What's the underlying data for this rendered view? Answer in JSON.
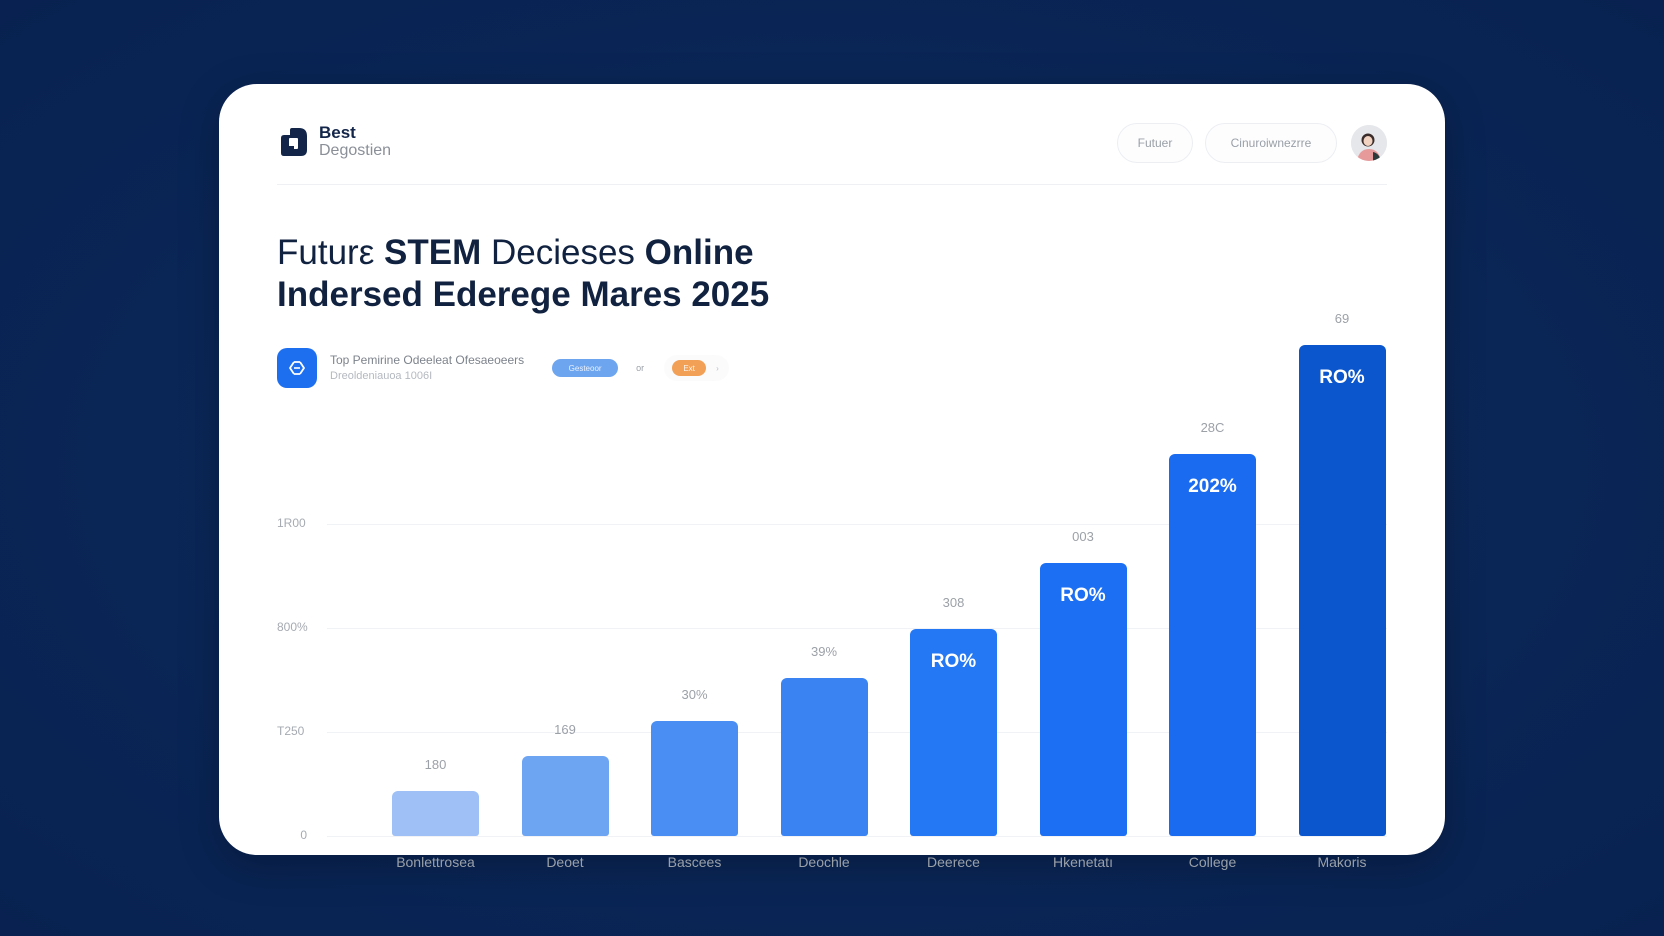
{
  "header": {
    "logo_line1": "Best",
    "logo_line2": "Degostien",
    "nav": [
      {
        "label": "Futuer"
      },
      {
        "label": "Cinuroiwnezrre"
      }
    ]
  },
  "title": {
    "part1": "Futurε ",
    "part2": "STEM ",
    "part3": "Decieses ",
    "part4": "Online",
    "line2": "Indersed Ederege Mares 2025"
  },
  "info": {
    "line1": "Top Pemirine Odeeleat Ofesaeoeers",
    "line2": "Dreoldeniauoa 1006I",
    "chip_blue": "Gesteoor",
    "chip_sep": "or",
    "chip_orange": "Ext",
    "chip_caret": "›"
  },
  "colors": {
    "background": "#0a2656",
    "card": "#ffffff",
    "primary_blue": "#1d6ff0",
    "dark_blue": "#0b56cc",
    "orange": "#f3a057"
  },
  "chart_data": {
    "type": "bar",
    "title": "Future STEM Decieses Online Indersed Ederege Mares 2025",
    "xlabel": "",
    "ylabel": "",
    "y_ticks": [
      "0",
      "T250",
      "800%",
      "1R00"
    ],
    "grid": true,
    "categories": [
      "Bonlettrosea",
      "Deoet",
      "Bascees",
      "Deochle",
      "Deerece",
      "Hkenetatı",
      "College",
      "Makoris"
    ],
    "values": [
      45,
      80,
      115,
      158,
      207,
      273,
      382,
      491
    ],
    "value_labels_above": [
      "180",
      "169",
      "30%",
      "39%",
      "308",
      "003",
      "28C",
      "69"
    ],
    "value_labels_inside": [
      "",
      "",
      "",
      "",
      "RO%",
      "RO%",
      "202%",
      "RO%"
    ],
    "bar_colors": [
      "#9ec0f6",
      "#6ea5f3",
      "#4a8ef3",
      "#3a83f2",
      "#2478f3",
      "#1c6ff2",
      "#1a6bf0",
      "#0b56cc"
    ]
  }
}
